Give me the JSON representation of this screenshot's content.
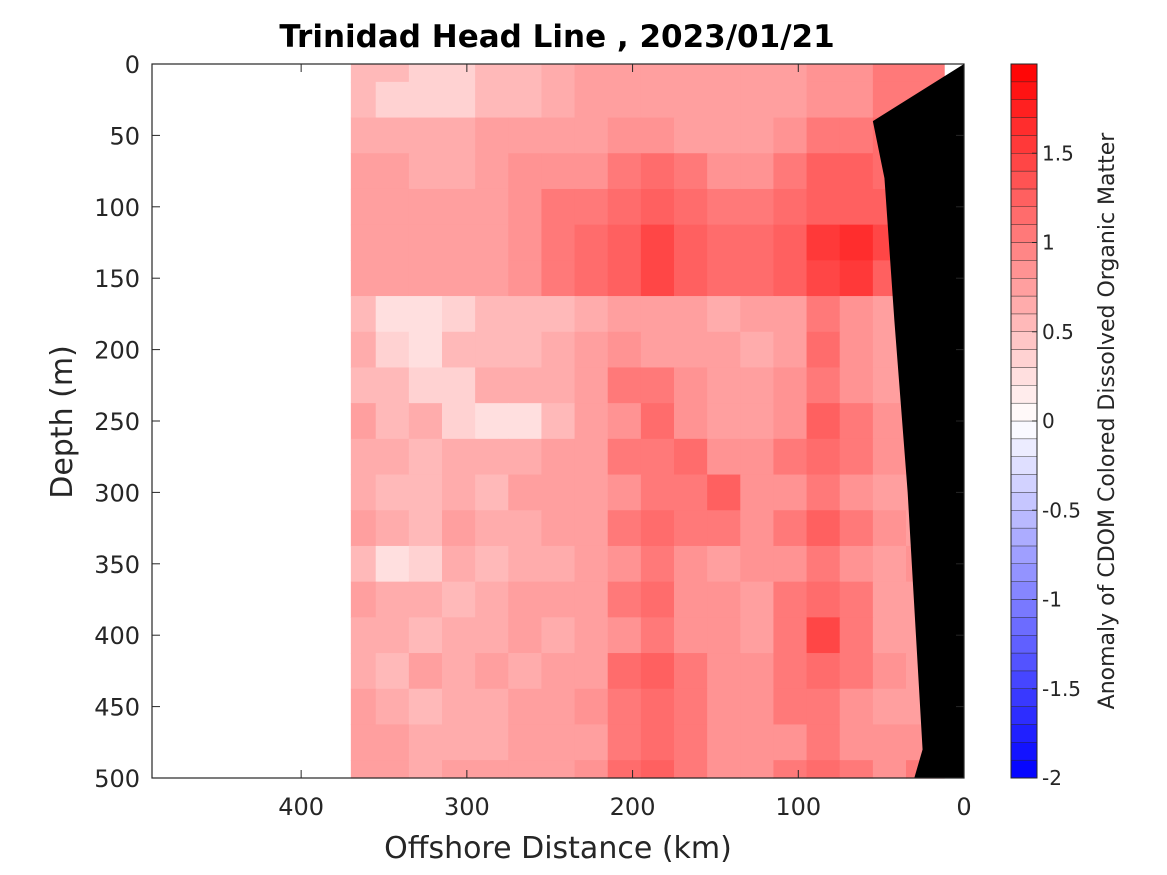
{
  "chart_data": {
    "type": "heatmap",
    "title": "Trinidad Head Line , 2023/01/21",
    "xlabel": "Offshore Distance (km)",
    "ylabel": "Depth (m)",
    "xlim": [
      490,
      0
    ],
    "ylim": [
      0,
      500
    ],
    "x_reversed": true,
    "y_reversed": true,
    "xticks": [
      400,
      300,
      200,
      100,
      0
    ],
    "yticks": [
      0,
      50,
      100,
      150,
      200,
      250,
      300,
      350,
      400,
      450,
      500
    ],
    "grid": false,
    "data_extent_km": [
      370,
      12
    ],
    "bathymetry_fill": "#000000",
    "colorbar": {
      "label": "Anomaly of CDOM Colored Dissolved Organic Matter",
      "range": [
        -2,
        2
      ],
      "ticks": [
        1.5,
        1,
        0.5,
        0,
        -0.5,
        -1,
        -1.5,
        -2
      ],
      "low_color": "#0000ff",
      "mid_color": "#ffffff",
      "high_color": "#ff0000",
      "n_levels": 40
    },
    "x": [
      365,
      345,
      325,
      305,
      285,
      265,
      245,
      225,
      205,
      185,
      165,
      145,
      125,
      105,
      85,
      65,
      45,
      25
    ],
    "y": [
      0,
      25,
      50,
      75,
      100,
      125,
      150,
      175,
      200,
      225,
      250,
      275,
      300,
      325,
      350,
      375,
      400,
      425,
      450,
      475,
      500
    ],
    "values": [
      [
        0.5,
        0.5,
        0.4,
        0.4,
        0.5,
        0.5,
        0.6,
        0.7,
        0.8,
        0.8,
        0.8,
        0.7,
        0.7,
        0.8,
        0.9,
        0.9,
        1.0,
        1.0
      ],
      [
        0.5,
        0.4,
        0.4,
        0.4,
        0.5,
        0.5,
        0.6,
        0.7,
        0.8,
        0.8,
        0.8,
        0.7,
        0.7,
        0.8,
        0.9,
        0.9,
        1.0,
        1.0
      ],
      [
        0.6,
        0.6,
        0.6,
        0.6,
        0.7,
        0.8,
        0.8,
        0.8,
        0.9,
        0.9,
        0.8,
        0.8,
        0.8,
        0.9,
        1.0,
        1.0,
        1.1,
        1.1
      ],
      [
        0.7,
        0.7,
        0.6,
        0.6,
        0.8,
        0.9,
        0.9,
        0.9,
        1.0,
        1.1,
        1.0,
        0.9,
        0.9,
        1.0,
        1.2,
        1.2,
        1.1,
        1.0
      ],
      [
        0.8,
        0.7,
        0.7,
        0.7,
        0.8,
        0.9,
        1.0,
        1.0,
        1.1,
        1.2,
        1.1,
        1.0,
        1.0,
        1.1,
        1.3,
        1.3,
        1.2,
        1.0
      ],
      [
        0.8,
        0.8,
        0.7,
        0.7,
        0.8,
        0.9,
        1.0,
        1.1,
        1.3,
        1.4,
        1.3,
        1.1,
        1.1,
        1.2,
        1.5,
        1.6,
        1.4,
        1.1
      ],
      [
        0.8,
        0.8,
        0.7,
        0.7,
        0.8,
        0.9,
        1.0,
        1.1,
        1.3,
        1.4,
        1.3,
        1.1,
        1.1,
        1.2,
        1.4,
        1.5,
        1.3,
        1.1
      ],
      [
        0.5,
        0.3,
        0.3,
        0.4,
        0.5,
        0.5,
        0.5,
        0.6,
        0.8,
        0.8,
        0.7,
        0.6,
        0.7,
        0.8,
        1.0,
        0.9,
        0.7,
        0.6
      ],
      [
        0.6,
        0.4,
        0.3,
        0.5,
        0.5,
        0.5,
        0.6,
        0.7,
        0.9,
        0.8,
        0.8,
        0.7,
        0.6,
        0.8,
        1.1,
        0.9,
        0.7,
        0.7
      ],
      [
        0.5,
        0.5,
        0.4,
        0.4,
        0.6,
        0.6,
        0.6,
        0.8,
        1.0,
        1.0,
        0.9,
        0.8,
        0.8,
        0.9,
        1.0,
        0.9,
        0.8,
        0.7
      ],
      [
        0.7,
        0.5,
        0.6,
        0.4,
        0.2,
        0.3,
        0.5,
        0.7,
        0.9,
        1.1,
        0.9,
        0.8,
        0.8,
        0.9,
        1.2,
        1.0,
        0.9,
        0.8
      ],
      [
        0.6,
        0.6,
        0.5,
        0.6,
        0.6,
        0.6,
        0.7,
        0.8,
        1.0,
        1.0,
        1.1,
        0.9,
        0.9,
        1.0,
        1.1,
        1.0,
        0.9,
        0.8
      ],
      [
        0.6,
        0.5,
        0.5,
        0.6,
        0.5,
        0.7,
        0.7,
        0.8,
        0.9,
        1.0,
        1.0,
        1.2,
        0.9,
        0.9,
        1.0,
        0.9,
        0.8,
        0.7
      ],
      [
        0.8,
        0.6,
        0.5,
        0.7,
        0.6,
        0.6,
        0.7,
        0.8,
        1.0,
        1.1,
        1.0,
        1.0,
        0.9,
        1.0,
        1.2,
        1.0,
        0.9,
        0.8
      ],
      [
        0.5,
        0.2,
        0.4,
        0.6,
        0.5,
        0.6,
        0.6,
        0.7,
        0.9,
        1.0,
        0.9,
        0.8,
        0.9,
        0.9,
        1.0,
        0.9,
        0.8,
        0.9
      ],
      [
        0.7,
        0.6,
        0.6,
        0.5,
        0.6,
        0.7,
        0.7,
        0.8,
        1.0,
        1.1,
        0.9,
        0.9,
        0.7,
        1.0,
        1.1,
        1.0,
        0.8,
        0.8
      ],
      [
        0.6,
        0.6,
        0.5,
        0.6,
        0.6,
        0.7,
        0.6,
        0.7,
        0.9,
        1.0,
        0.9,
        0.9,
        0.8,
        1.0,
        1.4,
        1.0,
        0.8,
        0.7
      ],
      [
        0.6,
        0.5,
        0.7,
        0.6,
        0.7,
        0.6,
        0.7,
        0.8,
        1.1,
        1.2,
        1.0,
        0.9,
        0.9,
        1.0,
        1.1,
        1.0,
        0.9,
        0.8
      ],
      [
        0.7,
        0.6,
        0.5,
        0.6,
        0.6,
        0.7,
        0.8,
        0.9,
        1.0,
        1.1,
        1.0,
        0.9,
        0.9,
        1.0,
        1.0,
        0.9,
        0.8,
        0.8
      ],
      [
        0.7,
        0.7,
        0.6,
        0.6,
        0.6,
        0.7,
        0.7,
        0.8,
        1.0,
        1.1,
        1.0,
        0.9,
        0.9,
        0.9,
        1.0,
        0.9,
        0.9,
        0.9
      ],
      [
        0.7,
        0.7,
        0.6,
        0.7,
        0.7,
        0.8,
        0.8,
        0.9,
        1.1,
        1.2,
        1.0,
        0.9,
        0.9,
        1.0,
        1.1,
        1.0,
        0.9,
        1.0
      ]
    ]
  }
}
